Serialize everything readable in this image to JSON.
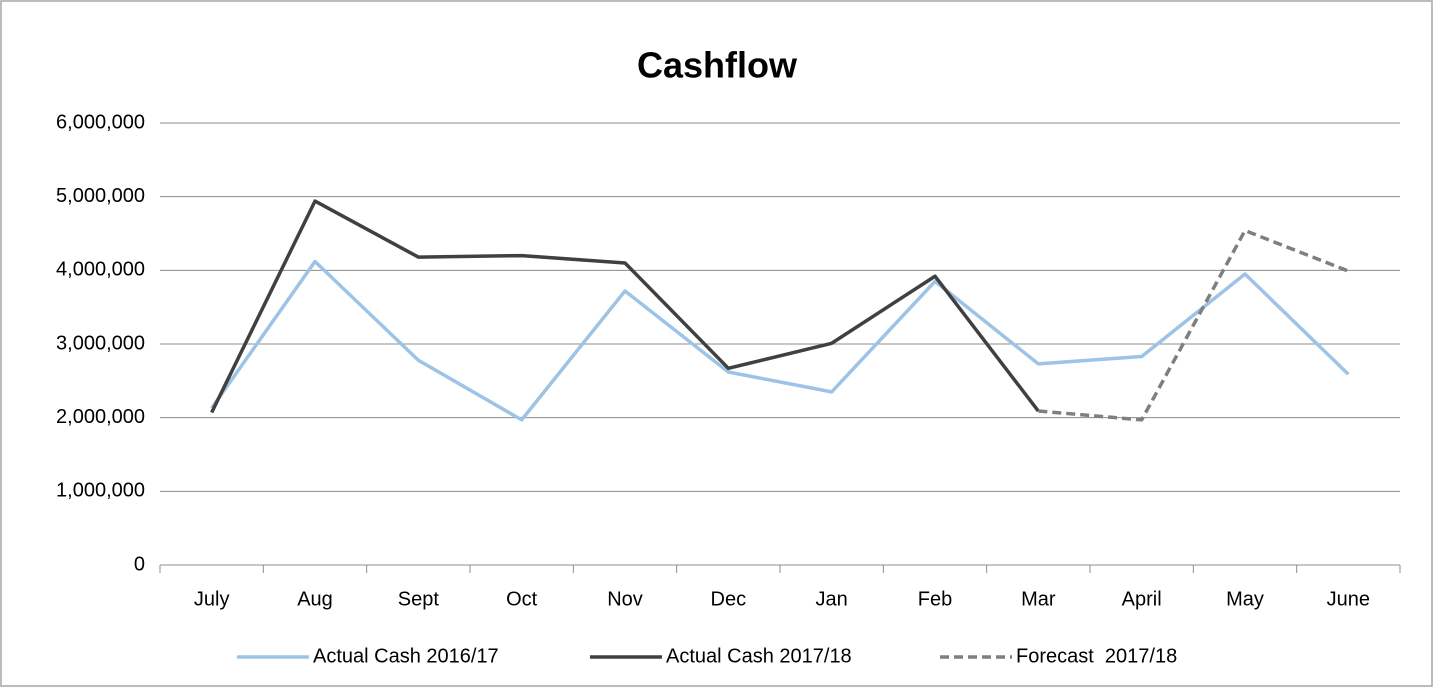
{
  "chart_data": {
    "type": "line",
    "title": "Cashflow",
    "categories": [
      "July",
      "Aug",
      "Sept",
      "Oct",
      "Nov",
      "Dec",
      "Jan",
      "Feb",
      "Mar",
      "April",
      "May",
      "June"
    ],
    "series": [
      {
        "name": "Actual Cash 2016/17",
        "color": "#9dc3e6",
        "dash": false,
        "values": [
          2130000,
          4120000,
          2780000,
          1970000,
          3720000,
          2620000,
          2350000,
          3850000,
          2730000,
          2830000,
          3950000,
          2590000
        ]
      },
      {
        "name": "Actual Cash 2017/18",
        "color": "#404040",
        "dash": false,
        "values": [
          2070000,
          4940000,
          4180000,
          4200000,
          4100000,
          2670000,
          3010000,
          3920000,
          2090000,
          null,
          null,
          null
        ]
      },
      {
        "name": "Forecast  2017/18",
        "color": "#7f7f7f",
        "dash": true,
        "values": [
          null,
          null,
          null,
          null,
          null,
          null,
          null,
          null,
          2090000,
          1970000,
          4540000,
          3990000
        ]
      }
    ],
    "ylim": [
      0,
      6000000
    ],
    "yticks": [
      0,
      {
        "value": 1000000,
        "label": "1,000,000"
      },
      {
        "value": 2000000,
        "label": "2,000,000"
      },
      {
        "value": 3000000,
        "label": "3,000,000"
      },
      {
        "value": 4000000,
        "label": "4,000,000"
      },
      {
        "value": 5000000,
        "label": "5,000,000"
      },
      {
        "value": 6000000,
        "label": "6,000,000"
      }
    ],
    "grid": true,
    "legend": "bottom"
  }
}
